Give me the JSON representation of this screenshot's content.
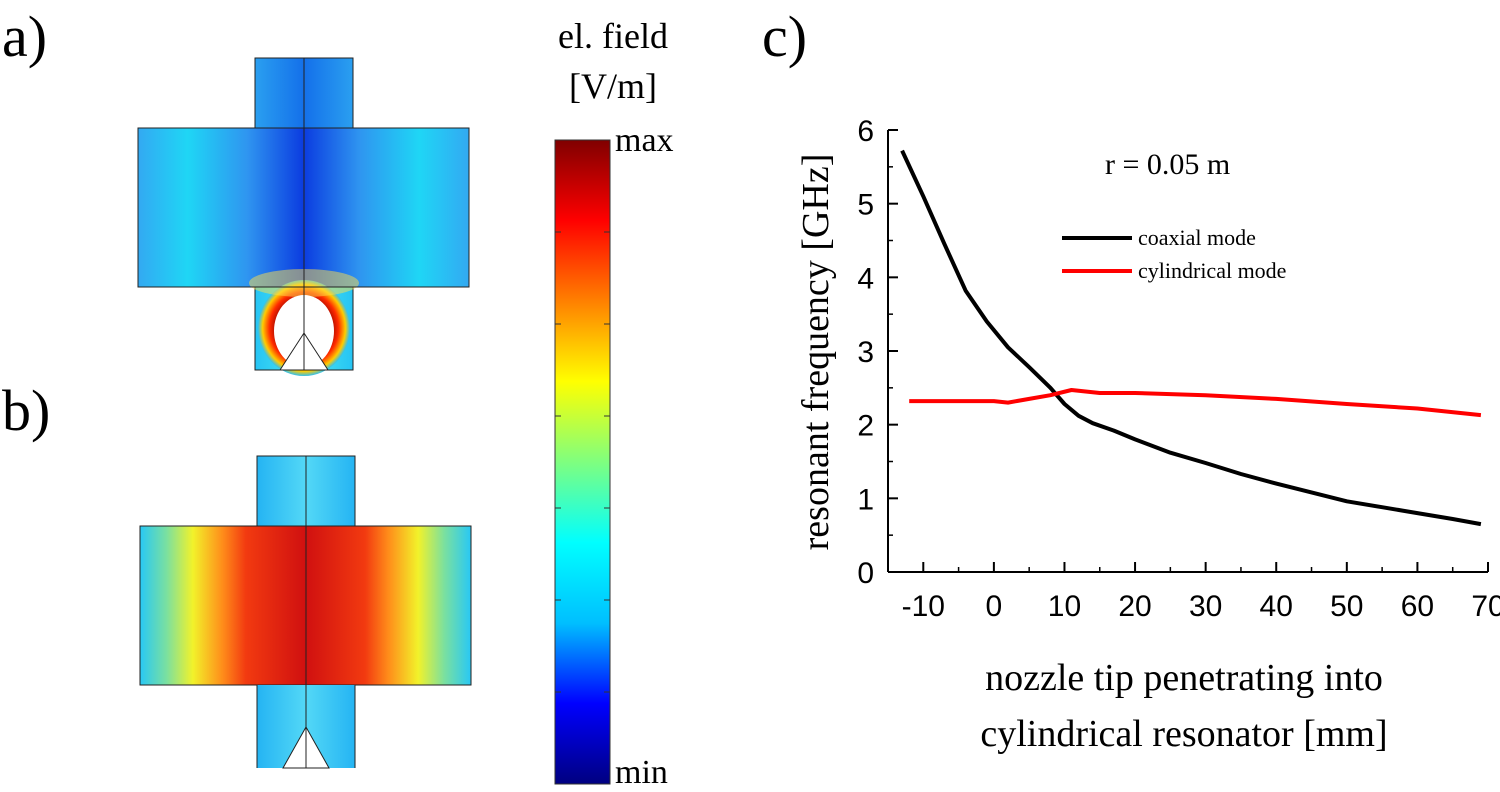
{
  "panels": {
    "a": "a)",
    "b": "b)",
    "c": "c)"
  },
  "colorbar": {
    "title_line1": "el. field",
    "title_line2": "[V/m]",
    "max_label": "max",
    "min_label": "min",
    "colors": [
      "#000080",
      "#0000ff",
      "#00bfff",
      "#00ffff",
      "#7fff7f",
      "#ffff00",
      "#ff8000",
      "#ff0000",
      "#800000"
    ]
  },
  "chart_data": {
    "type": "line",
    "title": "r = 0.05 m",
    "xlabel_line1": "nozzle tip penetrating into",
    "xlabel_line2": "cylindrical resonator [mm]",
    "ylabel": "resonant frequency [GHz]",
    "xlim": [
      -15,
      70
    ],
    "ylim": [
      0,
      6
    ],
    "xticks": [
      -10,
      0,
      10,
      20,
      30,
      40,
      50,
      60,
      70
    ],
    "yticks": [
      0,
      1,
      2,
      3,
      4,
      5,
      6
    ],
    "legend_position": "top-right",
    "series": [
      {
        "name": "coaxial mode",
        "color": "#000000",
        "x": [
          -13,
          -10,
          -7,
          -4,
          -1,
          2,
          5,
          8,
          10,
          12,
          14,
          17,
          20,
          25,
          30,
          35,
          40,
          45,
          50,
          55,
          60,
          65,
          69
        ],
        "y": [
          5.72,
          5.1,
          4.45,
          3.82,
          3.4,
          3.05,
          2.78,
          2.5,
          2.28,
          2.12,
          2.02,
          1.92,
          1.8,
          1.62,
          1.48,
          1.33,
          1.2,
          1.08,
          0.96,
          0.88,
          0.8,
          0.72,
          0.65
        ]
      },
      {
        "name": "cylindrical mode",
        "color": "#ff0000",
        "x": [
          -12,
          -5,
          0,
          2,
          5,
          8,
          11,
          15,
          20,
          30,
          40,
          50,
          60,
          69
        ],
        "y": [
          2.32,
          2.32,
          2.32,
          2.3,
          2.35,
          2.4,
          2.47,
          2.43,
          2.43,
          2.4,
          2.35,
          2.28,
          2.22,
          2.13
        ]
      }
    ]
  }
}
